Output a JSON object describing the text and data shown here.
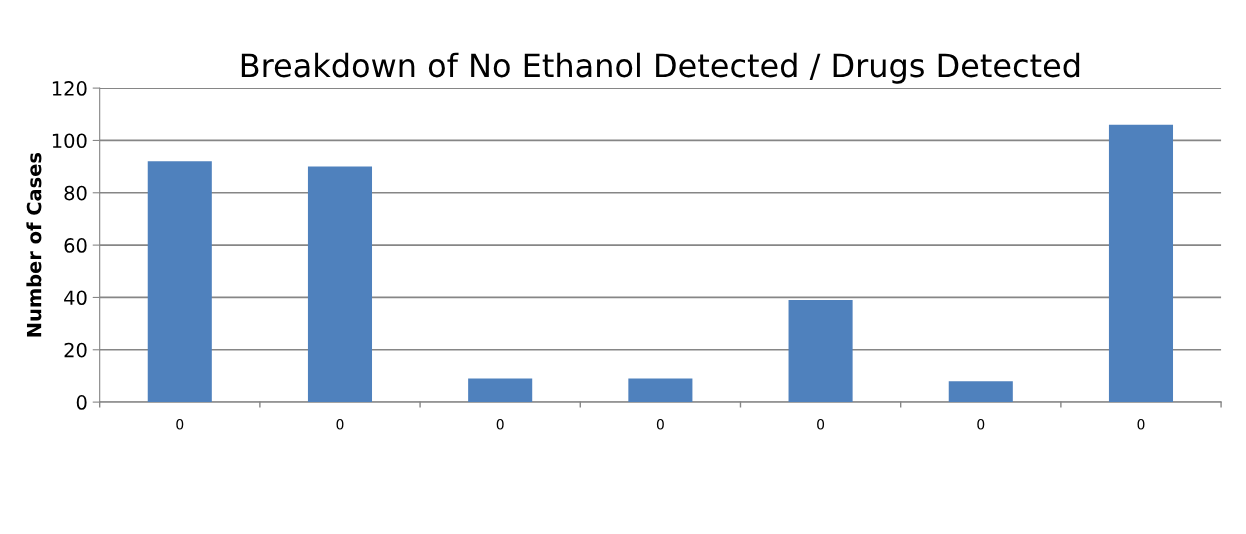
{
  "chart_data": {
    "type": "bar",
    "title": "Breakdown of No Ethanol Detected / Drugs Detected",
    "ylabel": "Number of Cases",
    "categories": [
      "0",
      "0",
      "0",
      "0",
      "0",
      "0",
      "0"
    ],
    "values": [
      92,
      90,
      9,
      9,
      39,
      8,
      106
    ],
    "color": "#4f81bd",
    "ylim": [
      0,
      120
    ],
    "yticks": [
      0,
      20,
      40,
      60,
      80,
      100,
      120
    ],
    "grid": "y"
  }
}
